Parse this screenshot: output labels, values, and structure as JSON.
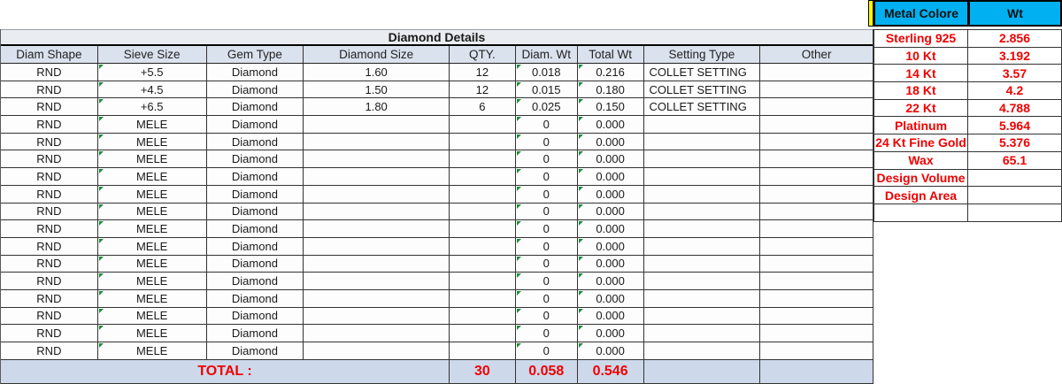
{
  "title": "Diamond Details",
  "main_table": {
    "headers": [
      "Diam Shape",
      "Sieve Size",
      "Gem Type",
      "Diamond Size",
      "QTY.",
      "Diam. Wt",
      "Total Wt",
      "Setting Type",
      "Other"
    ],
    "error_marker_columns": [
      1,
      5,
      6
    ],
    "rows": [
      [
        "RND",
        "+5.5",
        "Diamond",
        "1.60",
        "12",
        "0.018",
        "0.216",
        "COLLET SETTING",
        ""
      ],
      [
        "RND",
        "+4.5",
        "Diamond",
        "1.50",
        "12",
        "0.015",
        "0.180",
        "COLLET SETTING",
        ""
      ],
      [
        "RND",
        "+6.5",
        "Diamond",
        "1.80",
        "6",
        "0.025",
        "0.150",
        "COLLET SETTING",
        ""
      ],
      [
        "RND",
        "MELE",
        "Diamond",
        "",
        "",
        "0",
        "0.000",
        "",
        ""
      ],
      [
        "RND",
        "MELE",
        "Diamond",
        "",
        "",
        "0",
        "0.000",
        "",
        ""
      ],
      [
        "RND",
        "MELE",
        "Diamond",
        "",
        "",
        "0",
        "0.000",
        "",
        ""
      ],
      [
        "RND",
        "MELE",
        "Diamond",
        "",
        "",
        "0",
        "0.000",
        "",
        ""
      ],
      [
        "RND",
        "MELE",
        "Diamond",
        "",
        "",
        "0",
        "0.000",
        "",
        ""
      ],
      [
        "RND",
        "MELE",
        "Diamond",
        "",
        "",
        "0",
        "0.000",
        "",
        ""
      ],
      [
        "RND",
        "MELE",
        "Diamond",
        "",
        "",
        "0",
        "0.000",
        "",
        ""
      ],
      [
        "RND",
        "MELE",
        "Diamond",
        "",
        "",
        "0",
        "0.000",
        "",
        ""
      ],
      [
        "RND",
        "MELE",
        "Diamond",
        "",
        "",
        "0",
        "0.000",
        "",
        ""
      ],
      [
        "RND",
        "MELE",
        "Diamond",
        "",
        "",
        "0",
        "0.000",
        "",
        ""
      ],
      [
        "RND",
        "MELE",
        "Diamond",
        "",
        "",
        "0",
        "0.000",
        "",
        ""
      ],
      [
        "RND",
        "MELE",
        "Diamond",
        "",
        "",
        "0",
        "0.000",
        "",
        ""
      ],
      [
        "RND",
        "MELE",
        "Diamond",
        "",
        "",
        "0",
        "0.000",
        "",
        ""
      ],
      [
        "RND",
        "MELE",
        "Diamond",
        "",
        "",
        "0",
        "0.000",
        "",
        ""
      ]
    ],
    "total": {
      "label": "TOTAL :",
      "qty": "30",
      "diam_wt": "0.058",
      "total_wt": "0.546"
    }
  },
  "metal_table": {
    "headers": [
      "Metal Colore",
      "Wt"
    ],
    "rows": [
      [
        "Sterling 925",
        "2.856"
      ],
      [
        "10 Kt",
        "3.192"
      ],
      [
        "14 Kt",
        "3.57"
      ],
      [
        "18 Kt",
        "4.2"
      ],
      [
        "22 Kt",
        "4.788"
      ],
      [
        "Platinum",
        "5.964"
      ],
      [
        "24 Kt Fine Gold",
        "5.376"
      ],
      [
        "Wax",
        "65.1"
      ],
      [
        "Design Volume",
        ""
      ],
      [
        "Design Area",
        ""
      ],
      [
        "",
        ""
      ]
    ]
  },
  "colors": {
    "metal_header_bg": "#00b0f0",
    "red_text": "#f00000",
    "title_row_bg": "#e9edf1",
    "header_row_bg": "#dae2ee",
    "total_row_bg": "#cdd9eb",
    "yellow_strip": "#ffff00",
    "error_triangle_green": "#1e8a3c"
  }
}
